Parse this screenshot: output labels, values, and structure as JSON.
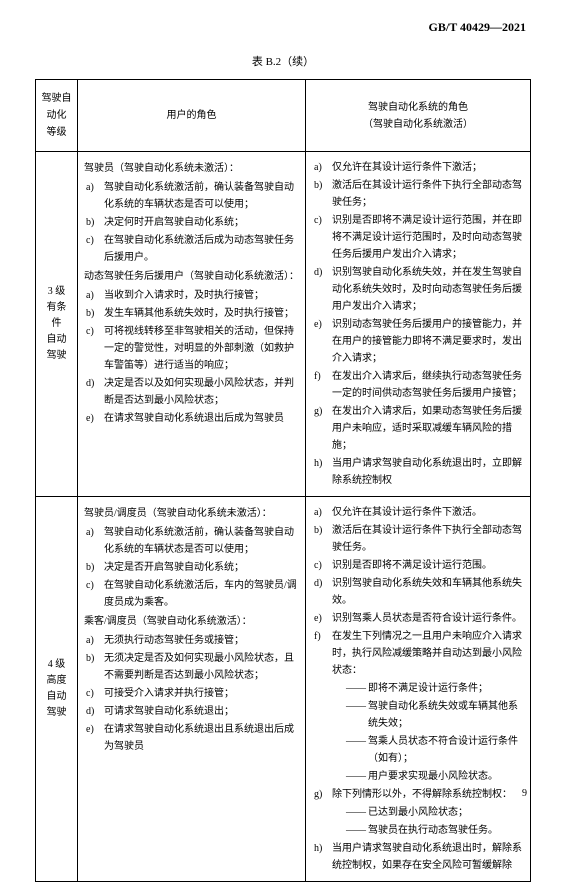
{
  "doc_code": "GB/T  40429—2021",
  "table_title": "表 B.2（续）",
  "page_number": "9",
  "headers": {
    "level": "驾驶自动化\n等级",
    "user": "用户的角色",
    "system_line1": "驾驶自动化系统的角色",
    "system_line2": "（驾驶自动化系统激活）"
  },
  "rows": [
    {
      "level": "3 级\n有条件\n自动驾驶",
      "user": {
        "section1_label": "驾驶员（驾驶自动化系统未激活）：",
        "section1_items": [
          "驾驶自动化系统激活前，确认装备驾驶自动化系统的车辆状态是否可以使用；",
          "决定何时开启驾驶自动化系统；",
          "在驾驶自动化系统激活后成为动态驾驶任务后援用户。"
        ],
        "section2_label": "动态驾驶任务后援用户（驾驶自动化系统激活）：",
        "section2_items": [
          "当收到介入请求时，及时执行接管；",
          "发生车辆其他系统失效时，及时执行接管；",
          "可将视线转移至非驾驶相关的活动，但保持一定的警觉性，对明显的外部刺激（如救护车警笛等）进行适当的响应；",
          "决定是否以及如何实现最小风险状态，并判断是否达到最小风险状态；",
          "在请求驾驶自动化系统退出后成为驾驶员"
        ]
      },
      "system": {
        "items": [
          "仅允许在其设计运行条件下激活；",
          "激活后在其设计运行条件下执行全部动态驾驶任务；",
          "识别是否即将不满足设计运行范围，并在即将不满足设计运行范围时，及时向动态驾驶任务后援用户发出介入请求；",
          "识别驾驶自动化系统失效，并在发生驾驶自动化系统失效时，及时向动态驾驶任务后援用户发出介入请求；",
          "识别动态驾驶任务后援用户的接管能力，并在用户的接管能力即将不满足要求时，发出介入请求；",
          "在发出介入请求后，继续执行动态驾驶任务一定的时间供动态驾驶任务后援用户接管；",
          "在发出介入请求后，如果动态驾驶任务后援用户未响应，适时采取减缓车辆风险的措施；",
          "当用户请求驾驶自动化系统退出时，立即解除系统控制权"
        ]
      }
    },
    {
      "level": "4 级\n高度自动\n驾驶",
      "user": {
        "section1_label": "驾驶员/调度员（驾驶自动化系统未激活）：",
        "section1_items": [
          "驾驶自动化系统激活前，确认装备驾驶自动化系统的车辆状态是否可以使用；",
          "决定是否开启驾驶自动化系统；",
          "在驾驶自动化系统激活后，车内的驾驶员/调度员成为乘客。"
        ],
        "section2_label": "乘客/调度员（驾驶自动化系统激活）：",
        "section2_items": [
          "无须执行动态驾驶任务或接管；",
          "无须决定是否及如何实现最小风险状态，且不需要判断是否达到最小风险状态；",
          "可接受介入请求并执行接管；",
          "可请求驾驶自动化系统退出；",
          "在请求驾驶自动化系统退出且系统退出后成为驾驶员"
        ]
      },
      "system": {
        "items": [
          "仅允许在其设计运行条件下激活。",
          "激活后在其设计运行条件下执行全部动态驾驶任务。",
          "识别是否即将不满足设计运行范围。",
          "识别驾驶自动化系统失效和车辆其他系统失效。",
          "识别驾乘人员状态是否符合设计运行条件。",
          {
            "text": "在发生下列情况之一且用户未响应介入请求时，执行风险减缓策略并自动达到最小风险状态：",
            "sub": [
              "即将不满足设计运行条件；",
              "驾驶自动化系统失效或车辆其他系统失效；",
              "驾乘人员状态不符合设计运行条件（如有）；",
              "用户要求实现最小风险状态。"
            ]
          },
          {
            "text": "除下列情形以外，不得解除系统控制权：",
            "sub": [
              "已达到最小风险状态；",
              "驾驶员在执行动态驾驶任务。"
            ]
          },
          "当用户请求驾驶自动化系统退出时，解除系统控制权，如果存在安全风险可暂缓解除"
        ]
      }
    }
  ]
}
